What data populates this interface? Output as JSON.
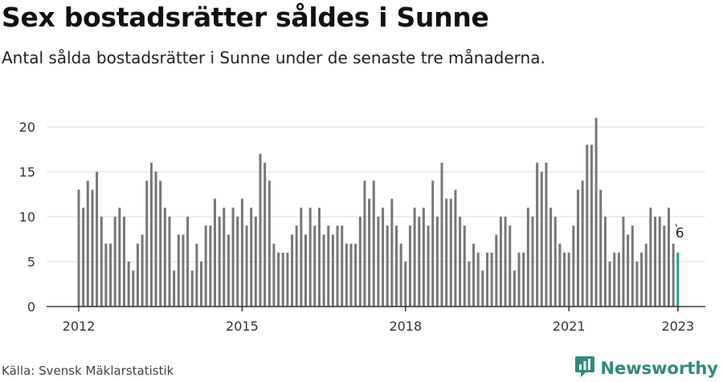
{
  "title": "Sex bostadsrätter såldes i Sunne",
  "subtitle": "Antal sålda bostadsrätter i Sunne under de senaste tre månaderna.",
  "source": "Källa: Svensk Mäklarstatistik",
  "brand": "Newsworthy",
  "colors": {
    "bar": "#777777",
    "highlight": "#1aa19a",
    "brand": "#2e8b7f"
  },
  "chart_data": {
    "type": "bar",
    "x_tick_labels": [
      "2012",
      "2015",
      "2018",
      "2021",
      "2023"
    ],
    "x_tick_years": [
      2012,
      2015,
      2018,
      2021,
      2023
    ],
    "y_ticks": [
      0,
      5,
      10,
      15,
      20
    ],
    "ylim": [
      0,
      22
    ],
    "grid": true,
    "start": "2012-01",
    "end": "2023-01",
    "highlight_label": "6",
    "values": [
      13,
      11,
      14,
      13,
      15,
      10,
      7,
      7,
      10,
      11,
      10,
      5,
      4,
      7,
      8,
      14,
      16,
      15,
      14,
      11,
      10,
      4,
      8,
      8,
      10,
      4,
      7,
      5,
      9,
      9,
      12,
      10,
      11,
      8,
      11,
      10,
      12,
      9,
      11,
      10,
      17,
      16,
      14,
      7,
      6,
      6,
      6,
      8,
      9,
      11,
      8,
      11,
      9,
      11,
      8,
      9,
      8,
      9,
      9,
      7,
      7,
      7,
      10,
      14,
      12,
      14,
      10,
      11,
      9,
      12,
      9,
      7,
      5,
      9,
      11,
      10,
      11,
      9,
      14,
      10,
      16,
      12,
      12,
      13,
      10,
      9,
      5,
      7,
      6,
      4,
      6,
      6,
      8,
      10,
      10,
      9,
      4,
      6,
      6,
      11,
      10,
      16,
      15,
      16,
      11,
      10,
      7,
      6,
      6,
      9,
      13,
      14,
      18,
      18,
      21,
      13,
      10,
      5,
      6,
      6,
      10,
      8,
      9,
      5,
      6,
      7,
      11,
      10,
      10,
      9,
      11,
      7,
      6
    ]
  }
}
